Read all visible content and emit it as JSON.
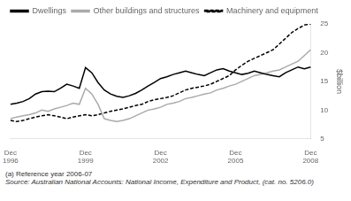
{
  "chart_data": {
    "type": "line",
    "categories": [
      "Dec\n1996",
      null,
      null,
      null,
      null,
      null,
      null,
      null,
      null,
      null,
      null,
      null,
      "Dec\n1999",
      null,
      null,
      null,
      null,
      null,
      null,
      null,
      null,
      null,
      null,
      null,
      "Dec\n2002",
      null,
      null,
      null,
      null,
      null,
      null,
      null,
      null,
      null,
      null,
      null,
      "Dec\n2005",
      null,
      null,
      null,
      null,
      null,
      null,
      null,
      null,
      null,
      null,
      null,
      "Dec\n2008"
    ],
    "series": [
      {
        "name": "Dwellings",
        "color": "#000000",
        "line_style": "solid",
        "values": [
          11.0,
          11.2,
          11.5,
          12.0,
          12.8,
          13.2,
          13.3,
          13.2,
          13.8,
          14.5,
          14.2,
          13.8,
          17.4,
          16.5,
          14.8,
          13.5,
          12.8,
          12.4,
          12.2,
          12.5,
          12.9,
          13.5,
          14.2,
          14.8,
          15.5,
          15.8,
          16.2,
          16.5,
          16.8,
          16.5,
          16.2,
          16.0,
          16.5,
          17.0,
          17.2,
          16.8,
          16.5,
          16.2,
          16.4,
          16.8,
          16.5,
          16.2,
          16.0,
          15.8,
          16.5,
          17.0,
          17.5,
          17.2,
          17.5
        ]
      },
      {
        "name": "Other buildings and structures",
        "color": "#aaaaaa",
        "line_style": "solid",
        "values": [
          8.5,
          8.8,
          9.0,
          9.2,
          9.5,
          10.0,
          9.8,
          10.2,
          10.5,
          10.8,
          11.2,
          11.0,
          13.8,
          12.8,
          11.0,
          8.5,
          8.2,
          8.0,
          8.2,
          8.5,
          9.0,
          9.5,
          10.0,
          10.2,
          10.5,
          11.0,
          11.2,
          11.5,
          12.0,
          12.2,
          12.5,
          12.8,
          13.0,
          13.5,
          13.8,
          14.2,
          14.5,
          15.0,
          15.5,
          16.0,
          16.2,
          16.5,
          16.8,
          17.0,
          17.5,
          18.0,
          18.5,
          19.5,
          20.5
        ]
      },
      {
        "name": "Machinery and equipment",
        "color": "#000000",
        "line_style": "dashed",
        "values": [
          8.2,
          8.0,
          8.2,
          8.5,
          8.8,
          9.0,
          9.2,
          9.0,
          8.8,
          8.5,
          8.8,
          9.0,
          9.2,
          9.0,
          9.2,
          9.5,
          9.8,
          10.0,
          10.2,
          10.5,
          10.8,
          11.0,
          11.5,
          11.8,
          12.0,
          12.2,
          12.5,
          13.0,
          13.5,
          13.8,
          14.0,
          14.2,
          14.5,
          15.0,
          15.5,
          16.0,
          17.0,
          17.8,
          18.5,
          19.0,
          19.5,
          20.0,
          20.5,
          21.5,
          22.5,
          23.5,
          24.2,
          24.8,
          25.0
        ]
      }
    ],
    "y_label": "$billion",
    "annotations": [
      "(a) Reference year 2006-07",
      "Source: Australian National Accounts: National Income, Expenditure and Product, (cat. no. 5206.0)"
    ],
    "ylim": [
      5,
      25
    ],
    "yticks": [
      5,
      10,
      15,
      20,
      25
    ],
    "grid": false,
    "legend": "top"
  }
}
